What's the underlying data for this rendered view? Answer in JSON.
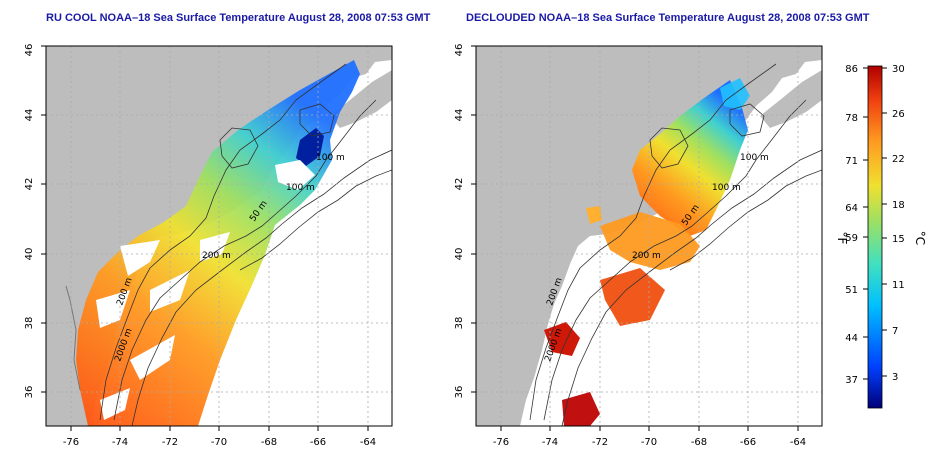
{
  "left_panel": {
    "title": "RU COOL NOAA–18 Sea Surface Temperature August 28, 2008 07:53 GMT",
    "x_ticks": [
      "-76",
      "-74",
      "-72",
      "-70",
      "-68",
      "-66",
      "-64"
    ],
    "y_ticks": [
      "36",
      "38",
      "40",
      "42",
      "44",
      "46"
    ],
    "contour_labels": [
      "100 m",
      "100 m",
      "50 m",
      "200 m",
      "200 m",
      "2000 m"
    ]
  },
  "right_panel": {
    "title": "DECLOUDED NOAA–18 Sea Surface Temperature August 28, 2008 07:53 GMT",
    "x_ticks": [
      "-76",
      "-74",
      "-72",
      "-70",
      "-68",
      "-66",
      "-64"
    ],
    "y_ticks": [
      "36",
      "38",
      "40",
      "42",
      "44",
      "46"
    ],
    "contour_labels": [
      "100 m",
      "100 m",
      "50 m",
      "200 m",
      "200 m",
      "2000 m"
    ]
  },
  "colorbar": {
    "left_unit": "°F",
    "right_unit": "°C",
    "fahrenheit_ticks": [
      "86",
      "78",
      "71",
      "64",
      "59",
      "51",
      "44",
      "37"
    ],
    "celsius_ticks": [
      "30",
      "26",
      "22",
      "18",
      "15",
      "11",
      "7",
      "3"
    ],
    "colors": [
      "#00007a",
      "#0040ff",
      "#00c0ff",
      "#40e0c0",
      "#a0e060",
      "#f0e030",
      "#ff9a20",
      "#f04010",
      "#b00000"
    ]
  }
}
